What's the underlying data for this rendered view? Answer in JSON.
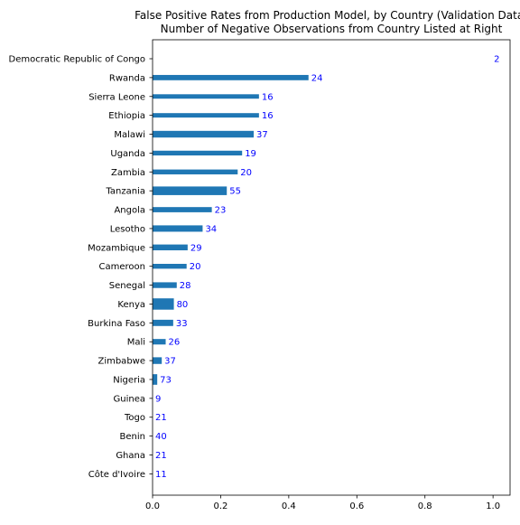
{
  "chart_data": {
    "type": "bar",
    "orientation": "horizontal",
    "title_lines": [
      "False Positive Rates from Production Model, by Country (Validation Data)",
      "Number of Negative Observations from Country Listed at Right"
    ],
    "categories": [
      "Democratic Republic of Congo",
      "Rwanda",
      "Sierra Leone",
      "Ethiopia",
      "Malawi",
      "Uganda",
      "Zambia",
      "Tanzania",
      "Angola",
      "Lesotho",
      "Mozambique",
      "Cameroon",
      "Senegal",
      "Kenya",
      "Burkina Faso",
      "Mali",
      "Zimbabwe",
      "Nigeria",
      "Guinea",
      "Togo",
      "Benin",
      "Ghana",
      "Côte d'Ivoire"
    ],
    "values": [
      1.0,
      0.458,
      0.3125,
      0.3125,
      0.297,
      0.263,
      0.25,
      0.218,
      0.174,
      0.147,
      0.103,
      0.1,
      0.071,
      0.0625,
      0.0606,
      0.0385,
      0.027,
      0.0137,
      0.0,
      0.0,
      0.0,
      0.0,
      0.0
    ],
    "n_negatives": [
      2,
      24,
      16,
      16,
      37,
      19,
      20,
      55,
      23,
      34,
      29,
      20,
      28,
      80,
      33,
      26,
      37,
      73,
      9,
      21,
      40,
      21,
      11
    ],
    "xlim": [
      0,
      1.05
    ],
    "x_ticks": [
      "0.0",
      "0.2",
      "0.4",
      "0.6",
      "0.8",
      "1.0"
    ],
    "grid": false,
    "colors": {
      "bar": "#1f77b4",
      "count_label": "#0000ff",
      "axis": "#000000"
    }
  }
}
